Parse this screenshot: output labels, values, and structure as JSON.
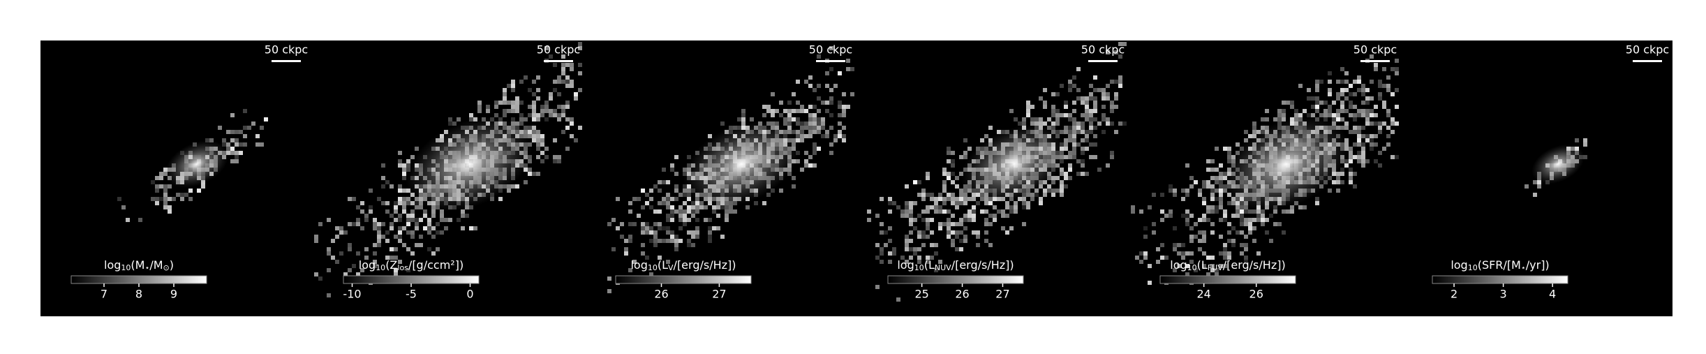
{
  "chart_data": {
    "type": "image-grid",
    "panels": [
      {
        "scalebar": "50 ckpc",
        "label": [
          "log",
          "10",
          "(M",
          "⋆",
          "/M",
          "⊙",
          ")"
        ],
        "clim": [
          6.06,
          9.94
        ],
        "ticks": [
          7,
          8,
          9
        ]
      },
      {
        "scalebar": "50 ckpc",
        "label": [
          "log",
          "10",
          "(Z",
          "los",
          "/[g/ccm²])"
        ],
        "clim": [
          -10.74,
          0.74
        ],
        "ticks": [
          -10,
          -5,
          0
        ]
      },
      {
        "scalebar": "50 ckpc",
        "label": [
          "log",
          "10",
          "(L",
          "V",
          "/[erg/s/Hz])"
        ],
        "clim": [
          25.21,
          27.55
        ],
        "ticks": [
          26,
          27
        ]
      },
      {
        "scalebar": "50 ckpc",
        "label": [
          "log",
          "10",
          "(L",
          "NUV",
          "/[erg/s/Hz])"
        ],
        "clim": [
          24.16,
          27.51
        ],
        "ticks": [
          25,
          26,
          27
        ]
      },
      {
        "scalebar": "50 ckpc",
        "label": [
          "log",
          "10",
          "(L",
          "FUV",
          "/[erg/s/Hz])"
        ],
        "clim": [
          22.33,
          27.5
        ],
        "ticks": [
          24,
          26
        ]
      },
      {
        "scalebar": "50 ckpc",
        "label": [
          "log",
          "10",
          "(SFR/[M",
          "⋆",
          "/yr])"
        ],
        "clim": [
          1.56,
          4.31
        ],
        "ticks": [
          2,
          3,
          4
        ]
      }
    ]
  }
}
